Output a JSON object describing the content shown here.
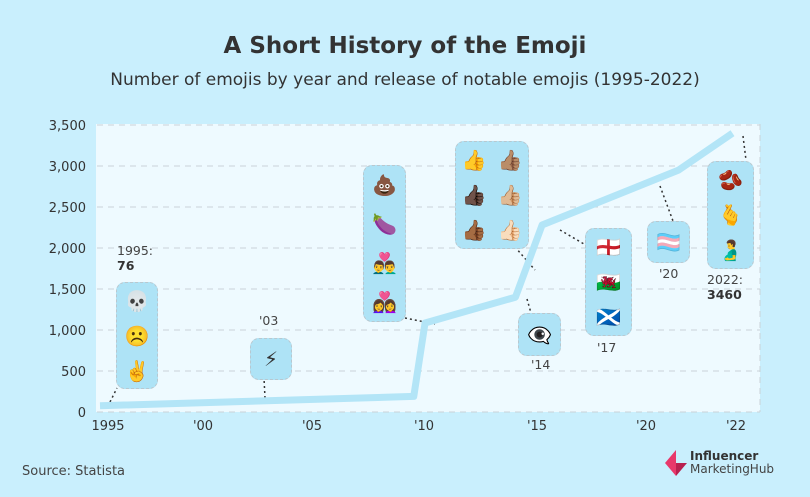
{
  "header": {
    "title": "A Short History of the Emoji",
    "subtitle": "Number of emojis by year and release of notable emojis (1995-2022)"
  },
  "chart_data": {
    "type": "line",
    "title": "A Short History of the Emoji",
    "subtitle": "Number of emojis by year and release of notable emojis (1995-2022)",
    "xlabel": "",
    "ylabel": "",
    "ylim": [
      0,
      3500
    ],
    "yticks": [
      0,
      500,
      1000,
      1500,
      2000,
      2500,
      3000,
      3500
    ],
    "ytick_labels": [
      "0",
      "500",
      "1,000",
      "1,500",
      "2,000",
      "2,500",
      "3,000",
      "3,500"
    ],
    "xticks": [
      1995,
      2000,
      2005,
      2010,
      2015,
      2020,
      2022
    ],
    "xtick_labels": [
      "1995",
      "'00",
      "'05",
      "'10",
      "'15",
      "'20",
      "'22"
    ],
    "grid": true,
    "line_color": "#b3e5f7",
    "series": [
      {
        "x": [
          1995,
          2009.9,
          2010.4,
          2014.4,
          2015.6,
          2020.9,
          2022.1
        ],
        "y": [
          76,
          190,
          1085,
          1400,
          2280,
          2950,
          3400
        ]
      }
    ],
    "annotations": [
      {
        "year_label": "1995:",
        "value_label": "76",
        "emojis": [
          "💀",
          "☹️",
          "✌️"
        ]
      },
      {
        "year_label": "'03",
        "emojis": [
          "⚡"
        ]
      },
      {
        "emojis": [
          "💩",
          "🍆",
          "👨‍❤️‍👨",
          "👩‍❤️‍👩"
        ]
      },
      {
        "emojis": [
          "👍",
          "👍🏽",
          "👍🏿",
          "👍🏼",
          "👍🏾",
          "👍🏻"
        ]
      },
      {
        "year_label": "'14",
        "emojis": [
          "👁️‍🗨️"
        ]
      },
      {
        "year_label": "'17",
        "emojis": [
          "🏴󠁧󠁢󠁥󠁮󠁧󠁿",
          "🏴󠁧󠁢󠁷󠁬󠁳󠁿",
          "🏴󠁧󠁢󠁳󠁣󠁴󠁿"
        ]
      },
      {
        "year_label": "'20",
        "emojis": [
          "🏳️‍⚧️"
        ]
      },
      {
        "year_label": "2022:",
        "value_label": "3460",
        "emojis": [
          "🫘",
          "🫰",
          "🫃"
        ]
      }
    ]
  },
  "footer": {
    "source": "Source: Statista",
    "logo_line1": "Influencer",
    "logo_line2": "MarketingHub"
  },
  "colors": {
    "background": "#c9effd",
    "plot_bg": "#eefaff",
    "line": "#b3e5f7",
    "logo": "#e8386b"
  }
}
